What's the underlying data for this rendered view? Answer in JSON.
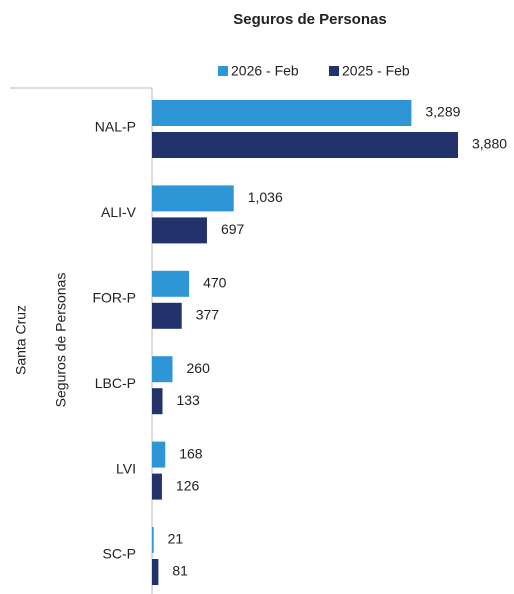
{
  "chart_data": {
    "type": "bar",
    "orientation": "horizontal",
    "title": "Seguros de Personas",
    "group_labels": [
      "Santa Cruz",
      "Seguros de Personas"
    ],
    "categories": [
      "NAL-P",
      "ALI-V",
      "FOR-P",
      "LBC-P",
      "LVI",
      "SC-P"
    ],
    "series": [
      {
        "name": "2026 - Feb",
        "color": "#2e96d4",
        "values": [
          3289,
          1036,
          470,
          260,
          168,
          21
        ],
        "value_labels": [
          "3,289",
          "1,036",
          "470",
          "260",
          "168",
          "21"
        ]
      },
      {
        "name": "2025 - Feb",
        "color": "#22336b",
        "values": [
          3880,
          697,
          377,
          133,
          126,
          81
        ],
        "value_labels": [
          "3,880",
          "697",
          "377",
          "133",
          "126",
          "81"
        ]
      }
    ],
    "legend": "top"
  }
}
